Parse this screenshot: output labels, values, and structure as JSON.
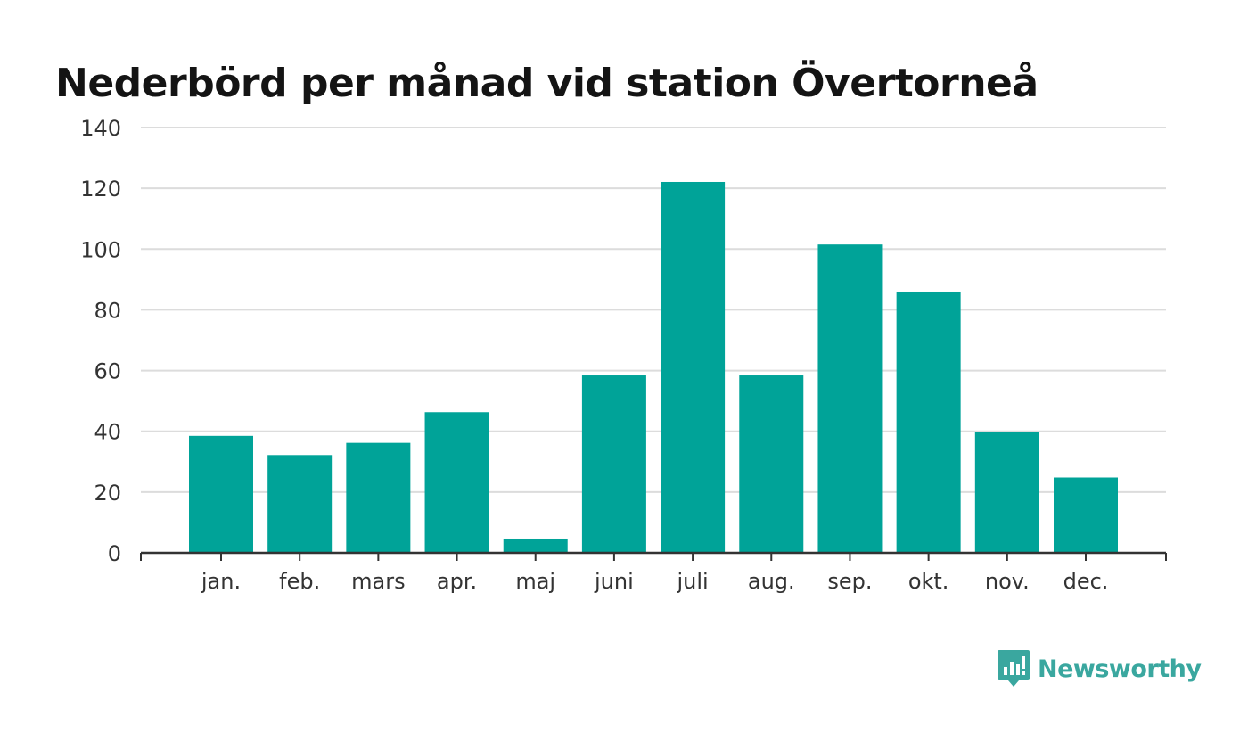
{
  "chart_data": {
    "type": "bar",
    "title": "Nederbörd per månad vid station Övertorneå",
    "categories": [
      "jan.",
      "feb.",
      "mars",
      "apr.",
      "maj",
      "juni",
      "juli",
      "aug.",
      "sep.",
      "okt.",
      "nov.",
      "dec."
    ],
    "values": [
      38.5,
      32.2,
      36.2,
      46.3,
      4.7,
      58.4,
      122.1,
      58.4,
      101.5,
      86.0,
      39.8,
      24.8
    ],
    "xlabel": "",
    "ylabel": "",
    "ylim": [
      0,
      140
    ],
    "yticks": [
      0,
      20,
      40,
      60,
      80,
      100,
      120,
      140
    ],
    "grid": true,
    "legend": "none",
    "bar_color": "#00a398"
  },
  "branding": {
    "name": "Newsworthy",
    "icon": "newsworthy-logo-icon",
    "color": "#3aa79f"
  }
}
